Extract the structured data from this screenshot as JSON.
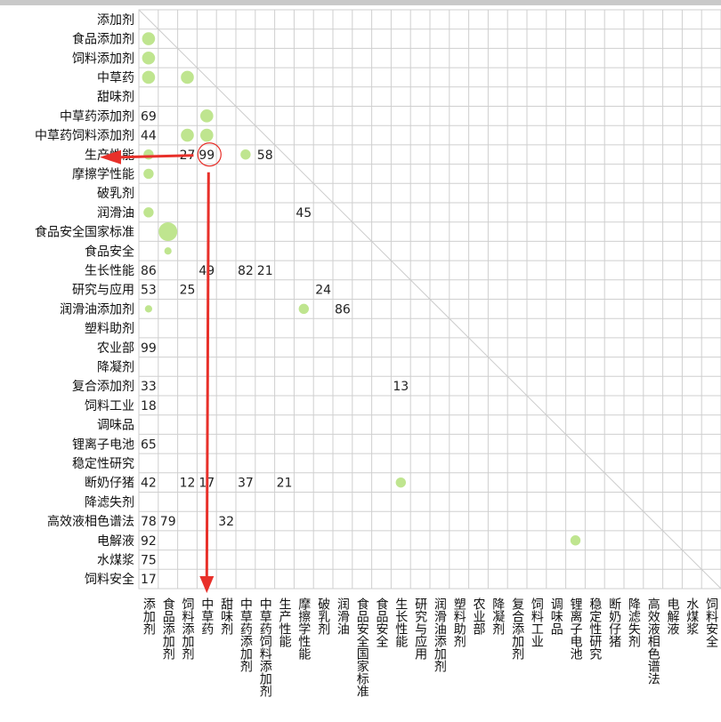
{
  "chart_data": {
    "type": "heatmap",
    "title": "",
    "labels": [
      "添加剂",
      "食品添加剂",
      "饲料添加剂",
      "中草药",
      "甜味剂",
      "中草药添加剂",
      "中草药饲料添加剂",
      "生产性能",
      "摩擦学性能",
      "破乳剂",
      "润滑油",
      "食品安全国家标准",
      "食品安全",
      "生长性能",
      "研究与应用",
      "润滑油添加剂",
      "塑料助剂",
      "农业部",
      "降凝剂",
      "复合添加剂",
      "饲料工业",
      "调味品",
      "锂离子电池",
      "稳定性研究",
      "断奶仔猪",
      "降滤失剂",
      "高效液相色谱法",
      "电解液",
      "水煤浆",
      "饲料安全"
    ],
    "color": "#bfe58f",
    "highlight_color": "#e8302a",
    "grid_color": "#cfcfcf",
    "cells": [
      {
        "row": 1,
        "col": 0,
        "kind": "dot",
        "size": 3
      },
      {
        "row": 2,
        "col": 0,
        "kind": "dot",
        "size": 3
      },
      {
        "row": 3,
        "col": 0,
        "kind": "dot",
        "size": 3
      },
      {
        "row": 3,
        "col": 2,
        "kind": "dot",
        "size": 3
      },
      {
        "row": 5,
        "col": 0,
        "kind": "num",
        "text": "69"
      },
      {
        "row": 5,
        "col": 3,
        "kind": "dot",
        "size": 3
      },
      {
        "row": 6,
        "col": 0,
        "kind": "num",
        "text": "44"
      },
      {
        "row": 6,
        "col": 2,
        "kind": "dot",
        "size": 3
      },
      {
        "row": 6,
        "col": 3,
        "kind": "dot",
        "size": 3
      },
      {
        "row": 7,
        "col": 0,
        "kind": "dot",
        "size": 2
      },
      {
        "row": 7,
        "col": 2,
        "kind": "num",
        "text": "27"
      },
      {
        "row": 7,
        "col": 3,
        "kind": "num",
        "text": "99"
      },
      {
        "row": 7,
        "col": 5,
        "kind": "dot",
        "size": 2
      },
      {
        "row": 7,
        "col": 6,
        "kind": "num",
        "text": "58"
      },
      {
        "row": 8,
        "col": 0,
        "kind": "dot",
        "size": 2
      },
      {
        "row": 10,
        "col": 0,
        "kind": "dot",
        "size": 2
      },
      {
        "row": 10,
        "col": 8,
        "kind": "num",
        "text": "45"
      },
      {
        "row": 11,
        "col": 1,
        "kind": "dot",
        "size": 5
      },
      {
        "row": 12,
        "col": 1,
        "kind": "dot",
        "size": 1
      },
      {
        "row": 13,
        "col": 0,
        "kind": "num",
        "text": "86"
      },
      {
        "row": 13,
        "col": 3,
        "kind": "num",
        "text": "49"
      },
      {
        "row": 13,
        "col": 5,
        "kind": "num",
        "text": "82"
      },
      {
        "row": 13,
        "col": 6,
        "kind": "num",
        "text": "21"
      },
      {
        "row": 14,
        "col": 0,
        "kind": "num",
        "text": "53"
      },
      {
        "row": 14,
        "col": 2,
        "kind": "num",
        "text": "25"
      },
      {
        "row": 14,
        "col": 9,
        "kind": "num",
        "text": "24"
      },
      {
        "row": 15,
        "col": 0,
        "kind": "dot",
        "size": 1
      },
      {
        "row": 15,
        "col": 8,
        "kind": "dot",
        "size": 2
      },
      {
        "row": 15,
        "col": 10,
        "kind": "num",
        "text": "86"
      },
      {
        "row": 17,
        "col": 0,
        "kind": "num",
        "text": "99"
      },
      {
        "row": 19,
        "col": 0,
        "kind": "num",
        "text": "33"
      },
      {
        "row": 19,
        "col": 13,
        "kind": "num",
        "text": "13"
      },
      {
        "row": 20,
        "col": 0,
        "kind": "num",
        "text": "18"
      },
      {
        "row": 22,
        "col": 0,
        "kind": "num",
        "text": "65"
      },
      {
        "row": 24,
        "col": 0,
        "kind": "num",
        "text": "42"
      },
      {
        "row": 24,
        "col": 2,
        "kind": "num",
        "text": "12"
      },
      {
        "row": 24,
        "col": 3,
        "kind": "num",
        "text": "17"
      },
      {
        "row": 24,
        "col": 5,
        "kind": "num",
        "text": "37"
      },
      {
        "row": 24,
        "col": 7,
        "kind": "num",
        "text": "21"
      },
      {
        "row": 24,
        "col": 13,
        "kind": "dot",
        "size": 2
      },
      {
        "row": 26,
        "col": 0,
        "kind": "num",
        "text": "78"
      },
      {
        "row": 26,
        "col": 1,
        "kind": "num",
        "text": "79"
      },
      {
        "row": 26,
        "col": 4,
        "kind": "num",
        "text": "32"
      },
      {
        "row": 27,
        "col": 0,
        "kind": "num",
        "text": "92"
      },
      {
        "row": 27,
        "col": 22,
        "kind": "dot",
        "size": 2
      },
      {
        "row": 28,
        "col": 0,
        "kind": "num",
        "text": "75"
      },
      {
        "row": 29,
        "col": 0,
        "kind": "num",
        "text": "17"
      }
    ],
    "annotations": {
      "circle_cell": {
        "row": 7,
        "col": 3
      },
      "arrow_left_to_row": 7,
      "arrow_down_along_col": 3
    }
  }
}
